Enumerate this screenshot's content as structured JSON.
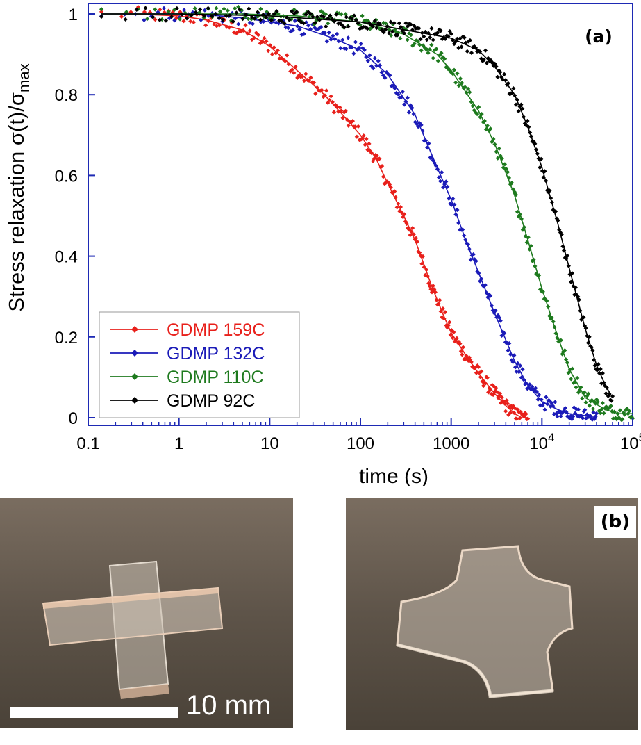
{
  "chart_data": {
    "type": "scatter",
    "title": "",
    "panel_label": "(a)",
    "xlabel": "time (s)",
    "ylabel_main": "Stress relaxation σ(t)/σ",
    "ylabel_sub": "max",
    "x_scale": "log",
    "xlim": [
      0.1,
      100000
    ],
    "ylim": [
      0,
      1
    ],
    "x_ticks": [
      {
        "value": 0.1,
        "label": "0.1"
      },
      {
        "value": 1,
        "label": "1"
      },
      {
        "value": 10,
        "label": "10"
      },
      {
        "value": 100,
        "label": "100"
      },
      {
        "value": 1000,
        "label": "1000"
      },
      {
        "value": 10000,
        "label": "10",
        "exp": "4"
      },
      {
        "value": 100000,
        "label": "10",
        "exp": "5"
      }
    ],
    "y_ticks": [
      {
        "value": 0,
        "label": "0"
      },
      {
        "value": 0.2,
        "label": "0.2"
      },
      {
        "value": 0.4,
        "label": "0.4"
      },
      {
        "value": 0.6,
        "label": "0.6"
      },
      {
        "value": 0.8,
        "label": "0.8"
      },
      {
        "value": 1,
        "label": "1"
      }
    ],
    "grid": false,
    "legend_position": "bottom-left",
    "series": [
      {
        "name": "GDMP 159C",
        "color": "#e8201b",
        "label_color": "#e8201b",
        "x": [
          0.14,
          0.3,
          1,
          2,
          5,
          10,
          20,
          40,
          70,
          100,
          150,
          200,
          300,
          400,
          500,
          600,
          800,
          1000,
          1500,
          2000,
          3000,
          4000,
          5000,
          6000,
          7000
        ],
        "y": [
          1.0,
          1.0,
          0.995,
          0.985,
          0.96,
          0.92,
          0.86,
          0.8,
          0.74,
          0.7,
          0.64,
          0.58,
          0.5,
          0.44,
          0.38,
          0.33,
          0.26,
          0.21,
          0.15,
          0.11,
          0.06,
          0.03,
          0.01,
          0.0,
          0.0
        ]
      },
      {
        "name": "GDMP 132C",
        "color": "#1b1bb8",
        "label_color": "#1b1bb8",
        "x": [
          0.14,
          0.3,
          1,
          2,
          5,
          10,
          20,
          50,
          100,
          200,
          400,
          700,
          1000,
          1500,
          2000,
          3000,
          5000,
          7000,
          10000,
          15000,
          20000,
          30000,
          40000
        ],
        "y": [
          1.0,
          1.0,
          1.0,
          0.998,
          0.99,
          0.98,
          0.97,
          0.94,
          0.91,
          0.85,
          0.75,
          0.62,
          0.54,
          0.43,
          0.36,
          0.26,
          0.14,
          0.08,
          0.04,
          0.02,
          0.01,
          0.005,
          0.0
        ]
      },
      {
        "name": "GDMP 110C",
        "color": "#1e7a1e",
        "label_color": "#1e7a1e",
        "x": [
          0.14,
          0.3,
          1,
          5,
          20,
          100,
          300,
          700,
          1000,
          2000,
          3000,
          5000,
          7000,
          10000,
          15000,
          20000,
          30000,
          50000,
          70000,
          100000
        ],
        "y": [
          1.0,
          1.0,
          1.0,
          1.0,
          0.995,
          0.98,
          0.95,
          0.9,
          0.86,
          0.76,
          0.68,
          0.55,
          0.44,
          0.32,
          0.2,
          0.12,
          0.05,
          0.02,
          0.01,
          0.01
        ]
      },
      {
        "name": "GDMP 92C",
        "color": "#000000",
        "label_color": "#000000",
        "x": [
          0.14,
          1,
          10,
          100,
          1000,
          2000,
          3000,
          5000,
          7000,
          10000,
          15000,
          20000,
          30000,
          40000,
          50000,
          60000
        ],
        "y": [
          1.0,
          1.0,
          0.995,
          0.98,
          0.94,
          0.91,
          0.87,
          0.8,
          0.72,
          0.62,
          0.48,
          0.37,
          0.22,
          0.13,
          0.08,
          0.05
        ]
      }
    ]
  },
  "panel_b": {
    "label": "(b)",
    "scale_label": "10 mm"
  },
  "colors": {
    "axis": "#1e2ab4",
    "photo_background": "#5b5146"
  }
}
